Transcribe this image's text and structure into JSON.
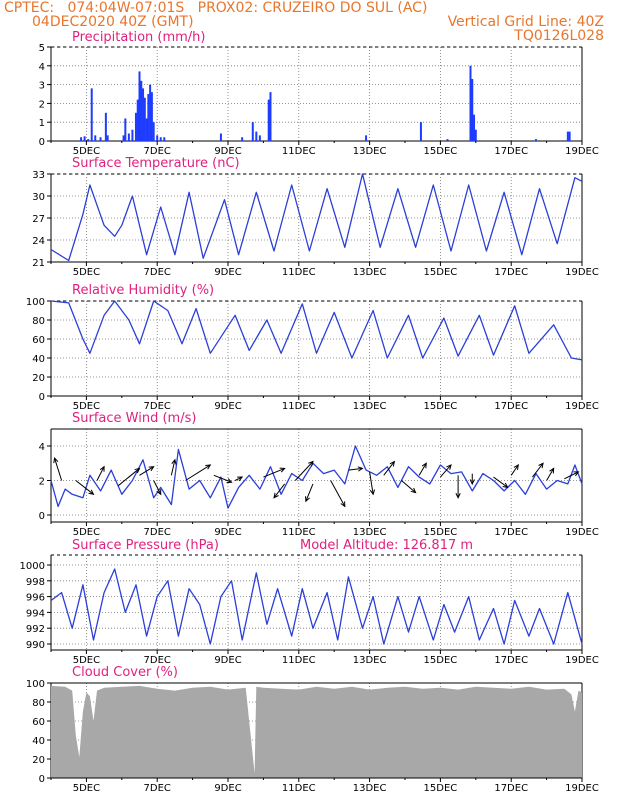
{
  "header": {
    "line1": "CPTEC:   074:04W-07:01S   PROX02: CRUZEIRO DO SUL (AC)",
    "line2_left": "04DEC2020 40Z (GMT)",
    "line2_right": "Vertical Grid Line: 40Z",
    "line3_right": "TQ0126L028"
  },
  "colors": {
    "header": "#e8762d",
    "title": "#e0217f",
    "line": "#2b3fd8",
    "bar": "#1e3cff",
    "cloud": "#a8a8a8",
    "arrow": "#000000"
  },
  "x_ticks": [
    "5DEC",
    "7DEC",
    "9DEC",
    "11DEC",
    "13DEC",
    "15DEC",
    "17DEC",
    "19DEC"
  ],
  "chart_data": [
    {
      "id": "precip",
      "type": "bar",
      "title": "Precipitation (mm/h)",
      "extra_label": "",
      "x_start_day": 4.0,
      "x_end_day": 19.0,
      "ylim": [
        0,
        5
      ],
      "yticks": [
        0,
        1,
        2,
        3,
        4,
        5
      ],
      "points": [
        [
          4.85,
          0.2
        ],
        [
          4.95,
          0.25
        ],
        [
          5.05,
          0.1
        ],
        [
          5.15,
          2.8
        ],
        [
          5.25,
          0.3
        ],
        [
          5.4,
          0.2
        ],
        [
          5.55,
          1.5
        ],
        [
          5.6,
          0.3
        ],
        [
          6.05,
          0.3
        ],
        [
          6.1,
          1.2
        ],
        [
          6.2,
          0.4
        ],
        [
          6.3,
          0.6
        ],
        [
          6.4,
          1.5
        ],
        [
          6.45,
          2.2
        ],
        [
          6.5,
          3.7
        ],
        [
          6.55,
          3.2
        ],
        [
          6.6,
          2.8
        ],
        [
          6.65,
          2.3
        ],
        [
          6.7,
          1.2
        ],
        [
          6.75,
          2.5
        ],
        [
          6.8,
          3.0
        ],
        [
          6.85,
          2.6
        ],
        [
          6.9,
          1.0
        ],
        [
          7.0,
          0.3
        ],
        [
          7.1,
          0.2
        ],
        [
          7.2,
          0.2
        ],
        [
          8.8,
          0.4
        ],
        [
          9.4,
          0.2
        ],
        [
          9.7,
          1.0
        ],
        [
          9.8,
          0.5
        ],
        [
          9.9,
          0.3
        ],
        [
          10.15,
          2.2
        ],
        [
          10.2,
          2.6
        ],
        [
          12.9,
          0.3
        ],
        [
          14.45,
          1.0
        ],
        [
          15.2,
          0.1
        ],
        [
          15.85,
          4.0
        ],
        [
          15.9,
          3.3
        ],
        [
          15.95,
          1.4
        ],
        [
          16.0,
          0.6
        ],
        [
          17.7,
          0.1
        ],
        [
          18.6,
          0.5
        ],
        [
          18.65,
          0.5
        ]
      ]
    },
    {
      "id": "temp",
      "type": "line",
      "title": "Surface Temperature (nC)",
      "extra_label": "",
      "x_start_day": 4.0,
      "x_end_day": 19.0,
      "ylim": [
        21,
        33
      ],
      "yticks": [
        21,
        24,
        27,
        30,
        33
      ],
      "dashed_top": true,
      "points": [
        [
          4.0,
          22.7
        ],
        [
          4.5,
          21.2
        ],
        [
          4.9,
          27.5
        ],
        [
          5.1,
          31.5
        ],
        [
          5.5,
          26.0
        ],
        [
          5.8,
          24.5
        ],
        [
          6.0,
          26.0
        ],
        [
          6.3,
          30.0
        ],
        [
          6.7,
          22.0
        ],
        [
          7.1,
          28.5
        ],
        [
          7.5,
          22.0
        ],
        [
          7.9,
          30.5
        ],
        [
          8.3,
          21.5
        ],
        [
          8.9,
          29.5
        ],
        [
          9.3,
          22.0
        ],
        [
          9.8,
          30.5
        ],
        [
          10.3,
          22.5
        ],
        [
          10.8,
          31.5
        ],
        [
          11.3,
          22.5
        ],
        [
          11.8,
          31.0
        ],
        [
          12.3,
          23.0
        ],
        [
          12.8,
          33.0
        ],
        [
          13.3,
          23.0
        ],
        [
          13.8,
          31.0
        ],
        [
          14.3,
          23.0
        ],
        [
          14.8,
          31.5
        ],
        [
          15.3,
          22.5
        ],
        [
          15.8,
          31.5
        ],
        [
          16.3,
          22.5
        ],
        [
          16.8,
          30.5
        ],
        [
          17.3,
          22.0
        ],
        [
          17.8,
          31.0
        ],
        [
          18.3,
          23.5
        ],
        [
          18.8,
          32.5
        ],
        [
          19.0,
          32.0
        ]
      ]
    },
    {
      "id": "rh",
      "type": "line",
      "title": "Relative Humidity (%)",
      "extra_label": "",
      "x_start_day": 4.0,
      "x_end_day": 19.0,
      "ylim": [
        0,
        100
      ],
      "yticks": [
        0,
        20,
        40,
        60,
        80,
        100
      ],
      "dashed_top": true,
      "points": [
        [
          4.0,
          100
        ],
        [
          4.5,
          98
        ],
        [
          4.9,
          60
        ],
        [
          5.1,
          45
        ],
        [
          5.5,
          85
        ],
        [
          5.8,
          100
        ],
        [
          6.2,
          80
        ],
        [
          6.5,
          55
        ],
        [
          6.9,
          100
        ],
        [
          7.3,
          90
        ],
        [
          7.7,
          55
        ],
        [
          8.1,
          92
        ],
        [
          8.5,
          45
        ],
        [
          9.2,
          85
        ],
        [
          9.6,
          48
        ],
        [
          10.1,
          80
        ],
        [
          10.5,
          45
        ],
        [
          11.1,
          97
        ],
        [
          11.5,
          45
        ],
        [
          12.0,
          88
        ],
        [
          12.5,
          40
        ],
        [
          13.1,
          90
        ],
        [
          13.5,
          40
        ],
        [
          14.1,
          85
        ],
        [
          14.5,
          40
        ],
        [
          15.1,
          82
        ],
        [
          15.5,
          42
        ],
        [
          16.1,
          85
        ],
        [
          16.5,
          43
        ],
        [
          17.1,
          95
        ],
        [
          17.5,
          45
        ],
        [
          18.2,
          75
        ],
        [
          18.7,
          40
        ],
        [
          19.0,
          38
        ]
      ]
    },
    {
      "id": "wind",
      "type": "line",
      "title": "Surface Wind (m/s)",
      "extra_label": "",
      "x_start_day": 4.0,
      "x_end_day": 19.0,
      "ylim": [
        0,
        4.5
      ],
      "yticks": [
        0,
        2,
        4
      ],
      "solid_top": true,
      "points": [
        [
          4.0,
          2.0
        ],
        [
          4.2,
          0.5
        ],
        [
          4.4,
          1.5
        ],
        [
          4.6,
          1.2
        ],
        [
          4.9,
          1.0
        ],
        [
          5.1,
          2.3
        ],
        [
          5.4,
          1.4
        ],
        [
          5.7,
          2.6
        ],
        [
          6.0,
          1.2
        ],
        [
          6.3,
          2.0
        ],
        [
          6.6,
          3.2
        ],
        [
          6.9,
          1.0
        ],
        [
          7.1,
          1.6
        ],
        [
          7.4,
          0.6
        ],
        [
          7.6,
          3.8
        ],
        [
          7.9,
          1.5
        ],
        [
          8.2,
          2.0
        ],
        [
          8.5,
          1.0
        ],
        [
          8.8,
          2.2
        ],
        [
          9.0,
          0.4
        ],
        [
          9.3,
          1.6
        ],
        [
          9.6,
          2.3
        ],
        [
          9.9,
          1.5
        ],
        [
          10.2,
          2.8
        ],
        [
          10.5,
          1.2
        ],
        [
          10.8,
          2.4
        ],
        [
          11.1,
          2.0
        ],
        [
          11.4,
          3.0
        ],
        [
          11.7,
          2.4
        ],
        [
          12.0,
          2.6
        ],
        [
          12.3,
          1.8
        ],
        [
          12.6,
          4.0
        ],
        [
          12.9,
          2.6
        ],
        [
          13.2,
          2.3
        ],
        [
          13.5,
          2.8
        ],
        [
          13.8,
          1.6
        ],
        [
          14.1,
          2.8
        ],
        [
          14.4,
          2.2
        ],
        [
          14.7,
          1.8
        ],
        [
          15.0,
          2.9
        ],
        [
          15.3,
          2.4
        ],
        [
          15.6,
          2.5
        ],
        [
          15.9,
          1.4
        ],
        [
          16.2,
          2.4
        ],
        [
          16.5,
          2.0
        ],
        [
          16.8,
          1.4
        ],
        [
          17.1,
          2.0
        ],
        [
          17.4,
          1.2
        ],
        [
          17.7,
          2.4
        ],
        [
          18.0,
          1.5
        ],
        [
          18.3,
          2.0
        ],
        [
          18.6,
          1.8
        ],
        [
          18.8,
          2.9
        ],
        [
          19.0,
          1.8
        ]
      ],
      "arrows": [
        [
          4.3,
          2.0,
          4.1,
          3.3
        ],
        [
          4.7,
          2.0,
          5.2,
          1.2
        ],
        [
          5.3,
          2.0,
          5.5,
          2.8
        ],
        [
          5.9,
          1.7,
          6.5,
          2.7
        ],
        [
          6.5,
          2.3,
          6.9,
          2.8
        ],
        [
          6.9,
          2.0,
          7.1,
          1.2
        ],
        [
          7.4,
          2.3,
          7.5,
          3.2
        ],
        [
          7.8,
          2.0,
          8.5,
          2.9
        ],
        [
          8.6,
          2.3,
          9.1,
          1.9
        ],
        [
          9.2,
          2.0,
          9.4,
          2.2
        ],
        [
          10.0,
          2.2,
          10.6,
          2.7
        ],
        [
          10.6,
          1.8,
          10.3,
          1.0
        ],
        [
          10.9,
          2.0,
          11.4,
          3.1
        ],
        [
          11.4,
          1.8,
          11.2,
          0.8
        ],
        [
          11.9,
          2.0,
          12.3,
          0.5
        ],
        [
          12.4,
          2.6,
          12.8,
          2.7
        ],
        [
          13.0,
          2.5,
          13.1,
          1.2
        ],
        [
          13.4,
          2.3,
          13.7,
          3.1
        ],
        [
          13.9,
          2.0,
          14.3,
          1.3
        ],
        [
          14.4,
          2.3,
          14.6,
          3.0
        ],
        [
          15.0,
          2.2,
          15.3,
          2.9
        ],
        [
          15.5,
          2.3,
          15.5,
          1.0
        ],
        [
          15.9,
          2.4,
          15.9,
          1.8
        ],
        [
          16.5,
          2.2,
          16.9,
          1.6
        ],
        [
          17.0,
          2.3,
          17.2,
          2.9
        ],
        [
          17.6,
          2.2,
          17.9,
          3.0
        ],
        [
          18.0,
          2.0,
          18.2,
          2.7
        ],
        [
          18.5,
          2.1,
          18.9,
          2.5
        ]
      ]
    },
    {
      "id": "pressure",
      "type": "line",
      "title": "Surface Pressure (hPa)",
      "extra_label": "Model Altitude: 126.817 m",
      "x_start_day": 4.0,
      "x_end_day": 19.0,
      "ylim": [
        989,
        1001
      ],
      "yticks": [
        990,
        992,
        994,
        996,
        998,
        1000
      ],
      "dashed_top": true,
      "points": [
        [
          4.0,
          995.5
        ],
        [
          4.3,
          996.5
        ],
        [
          4.6,
          992.0
        ],
        [
          4.9,
          997.5
        ],
        [
          5.2,
          990.5
        ],
        [
          5.5,
          996.5
        ],
        [
          5.8,
          999.5
        ],
        [
          6.1,
          994.0
        ],
        [
          6.4,
          997.5
        ],
        [
          6.7,
          991.0
        ],
        [
          7.0,
          996.0
        ],
        [
          7.3,
          998.0
        ],
        [
          7.6,
          991.0
        ],
        [
          7.9,
          997.0
        ],
        [
          8.2,
          995.0
        ],
        [
          8.5,
          990.0
        ],
        [
          8.8,
          996.0
        ],
        [
          9.1,
          998.0
        ],
        [
          9.4,
          990.5
        ],
        [
          9.8,
          999.0
        ],
        [
          10.1,
          992.5
        ],
        [
          10.4,
          997.0
        ],
        [
          10.8,
          991.0
        ],
        [
          11.1,
          997.0
        ],
        [
          11.4,
          992.0
        ],
        [
          11.8,
          996.5
        ],
        [
          12.1,
          990.5
        ],
        [
          12.4,
          998.5
        ],
        [
          12.8,
          992.0
        ],
        [
          13.1,
          996.0
        ],
        [
          13.4,
          990.0
        ],
        [
          13.8,
          996.0
        ],
        [
          14.1,
          991.5
        ],
        [
          14.4,
          996.0
        ],
        [
          14.8,
          990.5
        ],
        [
          15.1,
          995.0
        ],
        [
          15.4,
          991.5
        ],
        [
          15.8,
          996.0
        ],
        [
          16.1,
          990.5
        ],
        [
          16.5,
          994.5
        ],
        [
          16.8,
          990.0
        ],
        [
          17.1,
          995.5
        ],
        [
          17.5,
          991.0
        ],
        [
          17.8,
          994.5
        ],
        [
          18.2,
          990.0
        ],
        [
          18.6,
          996.5
        ],
        [
          19.0,
          990.0
        ]
      ]
    },
    {
      "id": "cloud",
      "type": "area",
      "title": "Cloud Cover (%)",
      "extra_label": "",
      "x_start_day": 4.0,
      "x_end_day": 19.0,
      "ylim": [
        0,
        100
      ],
      "yticks": [
        0,
        20,
        40,
        60,
        80,
        100
      ],
      "solid_top": true,
      "points": [
        [
          4.0,
          97
        ],
        [
          4.4,
          96
        ],
        [
          4.6,
          92
        ],
        [
          4.7,
          45
        ],
        [
          4.8,
          22
        ],
        [
          4.9,
          70
        ],
        [
          5.0,
          90
        ],
        [
          5.1,
          86
        ],
        [
          5.2,
          60
        ],
        [
          5.3,
          92
        ],
        [
          5.5,
          95
        ],
        [
          6.0,
          96
        ],
        [
          6.5,
          97
        ],
        [
          7.0,
          94
        ],
        [
          7.5,
          92
        ],
        [
          8.0,
          95
        ],
        [
          8.5,
          96
        ],
        [
          9.0,
          93
        ],
        [
          9.5,
          95
        ],
        [
          9.75,
          5
        ],
        [
          9.8,
          96
        ],
        [
          10.0,
          95
        ],
        [
          10.5,
          94
        ],
        [
          11.0,
          93
        ],
        [
          11.5,
          96
        ],
        [
          12.0,
          94
        ],
        [
          12.5,
          96
        ],
        [
          13.0,
          93
        ],
        [
          13.5,
          95
        ],
        [
          14.0,
          96
        ],
        [
          14.5,
          94
        ],
        [
          15.0,
          95
        ],
        [
          15.5,
          93
        ],
        [
          16.0,
          96
        ],
        [
          16.5,
          95
        ],
        [
          17.0,
          94
        ],
        [
          17.5,
          96
        ],
        [
          18.0,
          93
        ],
        [
          18.5,
          94
        ],
        [
          18.7,
          88
        ],
        [
          18.8,
          70
        ],
        [
          18.9,
          92
        ],
        [
          19.0,
          90
        ]
      ]
    }
  ]
}
